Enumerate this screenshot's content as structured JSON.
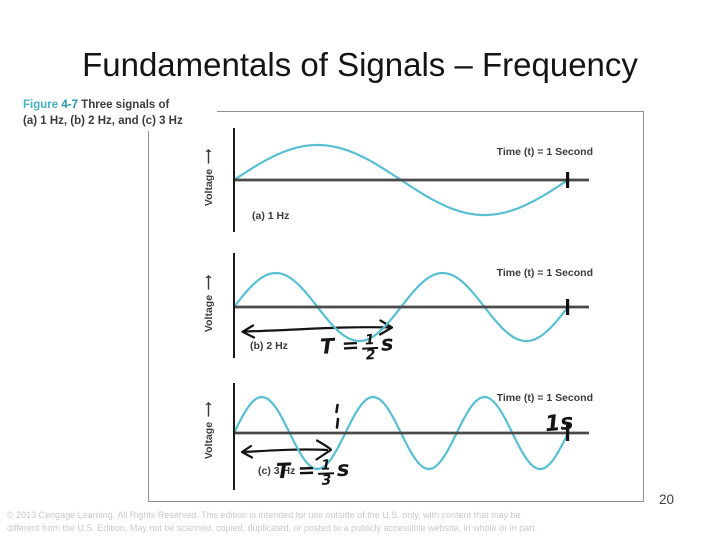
{
  "slide": {
    "title": "Fundamentals of Signals – Frequency",
    "page_number": "20",
    "copyright_line1": "© 2013 Cengage Learning. All Rights Reserved. This edition is intended for use outside of the U.S. only, with content that may be",
    "copyright_line2": "different from the U.S. Edition. May not be scanned, copied, duplicated, or posted to a publicly accessible website, in whole or in part."
  },
  "figure": {
    "caption": {
      "figure_word": "Figure",
      "figure_number": "4-7",
      "caption_text": "Three signals of",
      "caption_line2": "(a) 1 Hz, (b) 2 Hz, and (c) 3 Hz"
    },
    "axis": {
      "y_label": "Voltage",
      "arrow_glyph": "⟶"
    },
    "colors": {
      "wave": "#58bfd2",
      "time_axis": "#4a4a4a",
      "voltage_axis": "#1a1a1a",
      "figure_label_teal": "#1e97ad",
      "handwriting": "#141414"
    },
    "plots": [
      {
        "id": "a",
        "label": "(a) 1 Hz",
        "frequency_hz": 1,
        "y_label": "Voltage",
        "time_label": "Time (t) = 1 Second"
      },
      {
        "id": "b",
        "label": "(b) 2 Hz",
        "frequency_hz": 2,
        "y_label": "Voltage",
        "time_label": "Time (t) = 1 Second",
        "annotation": {
          "prefix": "T =",
          "numerator": "1",
          "denominator": "2",
          "unit": "s"
        }
      },
      {
        "id": "c",
        "label": "(c) 3 Hz",
        "frequency_hz": 3,
        "y_label": "Voltage",
        "time_label": "Time (t) = 1 Second",
        "annotation": {
          "prefix": "T =",
          "numerator": "1",
          "denominator": "3",
          "unit": "s"
        },
        "time_mark": "1s"
      }
    ]
  }
}
